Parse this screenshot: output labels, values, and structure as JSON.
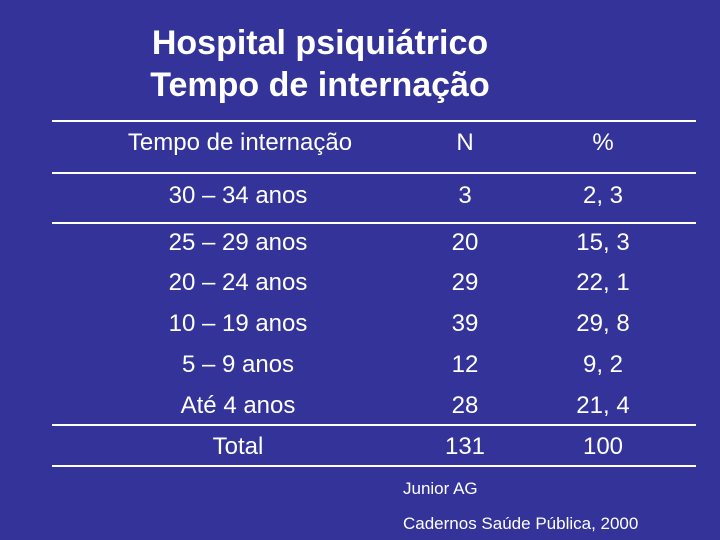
{
  "title": {
    "line1": "Hospital psiquiátrico",
    "line2": "Tempo de internação"
  },
  "table": {
    "headers": [
      "Tempo de internação",
      "N",
      "%"
    ],
    "rows": [
      [
        "30 – 34 anos",
        "3",
        "2, 3"
      ],
      [
        "25 – 29 anos",
        "20",
        "15, 3"
      ],
      [
        "20 – 24 anos",
        "29",
        "22, 1"
      ],
      [
        "10 – 19 anos",
        "39",
        "29, 8"
      ],
      [
        "5 – 9 anos",
        "12",
        "9, 2"
      ],
      [
        "Até 4 anos",
        "28",
        "21, 4"
      ],
      [
        "Total",
        "131",
        "100"
      ]
    ]
  },
  "footer": {
    "author": "Junior AG",
    "source": "Cadernos Saúde Pública, 2000"
  },
  "colors": {
    "background": "#333399",
    "text": "#ffffff"
  }
}
